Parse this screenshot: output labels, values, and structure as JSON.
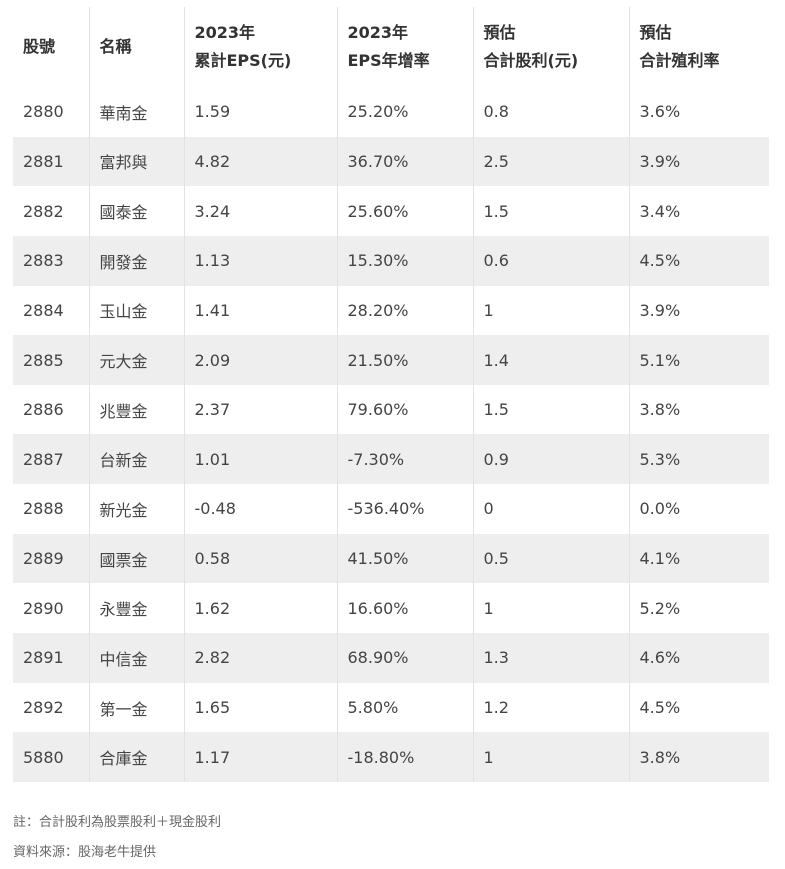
{
  "table": {
    "headers": [
      [
        "股號"
      ],
      [
        "名稱"
      ],
      [
        "2023年",
        "累計EPS(元)"
      ],
      [
        "2023年",
        "EPS年增率"
      ],
      [
        "預估",
        "合計股利(元)"
      ],
      [
        "預估",
        "合計殖利率"
      ]
    ],
    "rows": [
      [
        "2880",
        "華南金",
        "1.59",
        "25.20%",
        "0.8",
        "3.6%"
      ],
      [
        "2881",
        "富邦與",
        "4.82",
        "36.70%",
        "2.5",
        "3.9%"
      ],
      [
        "2882",
        "國泰金",
        "3.24",
        "25.60%",
        "1.5",
        "3.4%"
      ],
      [
        "2883",
        "開發金",
        "1.13",
        "15.30%",
        "0.6",
        "4.5%"
      ],
      [
        "2884",
        "玉山金",
        "1.41",
        "28.20%",
        "1",
        "3.9%"
      ],
      [
        "2885",
        "元大金",
        "2.09",
        "21.50%",
        "1.4",
        "5.1%"
      ],
      [
        "2886",
        "兆豐金",
        "2.37",
        "79.60%",
        "1.5",
        "3.8%"
      ],
      [
        "2887",
        "台新金",
        "1.01",
        "-7.30%",
        "0.9",
        "5.3%"
      ],
      [
        "2888",
        "新光金",
        "-0.48",
        "-536.40%",
        "0",
        "0.0%"
      ],
      [
        "2889",
        "國票金",
        "0.58",
        "41.50%",
        "0.5",
        "4.1%"
      ],
      [
        "2890",
        "永豐金",
        "1.62",
        "16.60%",
        "1",
        "5.2%"
      ],
      [
        "2891",
        "中信金",
        "2.82",
        "68.90%",
        "1.3",
        "4.6%"
      ],
      [
        "2892",
        "第一金",
        "1.65",
        "5.80%",
        "1.2",
        "4.5%"
      ],
      [
        "5880",
        "合庫金",
        "1.17",
        "-18.80%",
        "1",
        "3.8%"
      ]
    ]
  },
  "notes": {
    "footnote": "註：合計股利為股票股利＋現金股利",
    "source": "資料來源：股海老牛提供"
  },
  "colors": {
    "stripe": "#eeeeee",
    "divider": "#e2e2e2",
    "text": "#333333",
    "note_text": "#666666"
  }
}
